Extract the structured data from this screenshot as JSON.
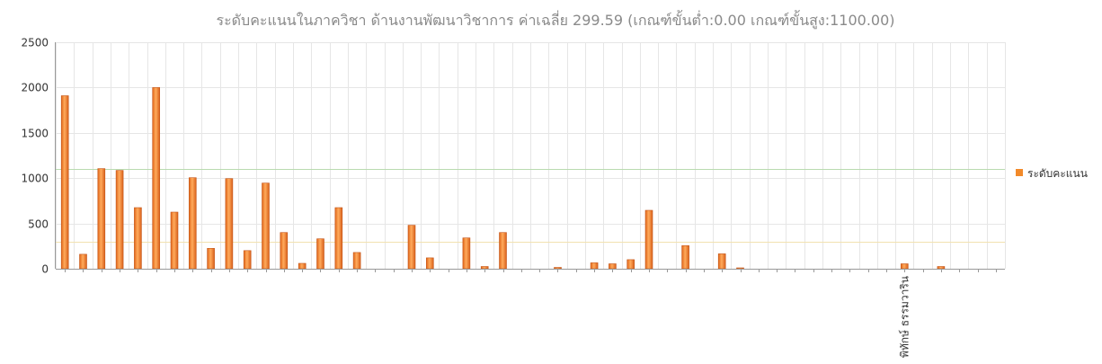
{
  "chart_data": {
    "type": "bar",
    "title": "ระดับคะแนนในภาควิชา ด้านงานพัฒนาวิชาการ ค่าเฉลี่ย 299.59 (เกณฑ์ขั้นต่ำ:0.00 เกณฑ์ขั้นสูง:1100.00)",
    "ylim": [
      0,
      2500
    ],
    "yticks": [
      "0",
      "500",
      "1000",
      "1500",
      "2000",
      "2500"
    ],
    "categories": [
      "",
      "",
      "",
      "",
      "",
      "",
      "",
      "",
      "",
      "",
      "",
      "",
      "",
      "",
      "",
      "",
      "",
      "",
      "",
      "",
      "",
      "",
      "",
      "",
      "",
      "",
      "",
      "",
      "",
      "",
      "",
      "",
      "",
      "",
      "",
      "",
      "",
      "",
      "",
      "",
      "",
      "",
      "",
      "",
      "",
      "",
      "พิทักษ์ ธรรมวาริน",
      "",
      "",
      "",
      "",
      ""
    ],
    "series": [
      {
        "name": "ระดับคะแนน",
        "color": "#f28a2a",
        "values": [
          1910,
          160,
          1105,
          1085,
          675,
          2000,
          625,
          1005,
          225,
          995,
          200,
          945,
          400,
          60,
          330,
          675,
          180,
          0,
          0,
          480,
          120,
          0,
          340,
          25,
          400,
          0,
          0,
          15,
          0,
          65,
          55,
          100,
          645,
          0,
          255,
          0,
          165,
          10,
          0,
          0,
          0,
          0,
          0,
          0,
          0,
          0,
          55,
          0,
          25,
          0,
          0,
          0
        ]
      }
    ],
    "reference_lines": [
      {
        "value": 1100,
        "color": "#b9dbb0"
      },
      {
        "value": 299.59,
        "color": "#f2e2b0"
      }
    ],
    "grid": true,
    "legend": "right"
  }
}
